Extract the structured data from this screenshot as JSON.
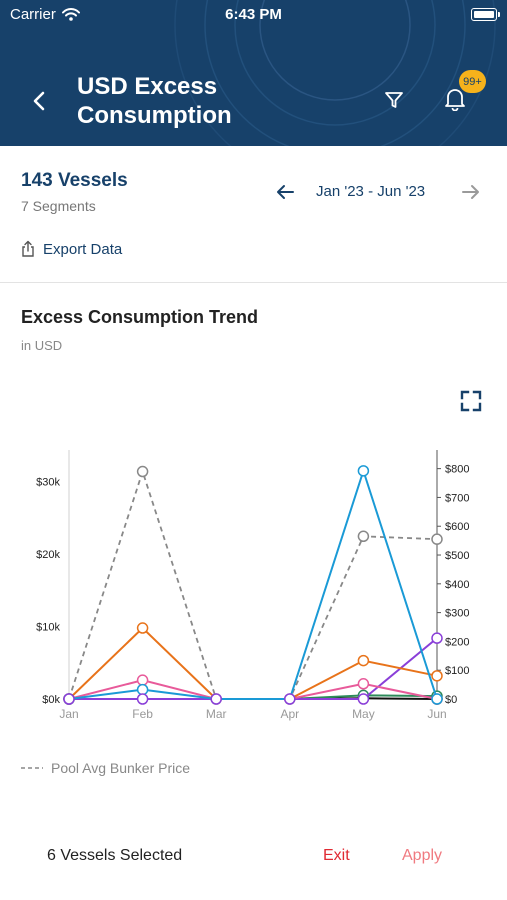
{
  "status_bar": {
    "carrier": "Carrier",
    "time": "6:43 PM"
  },
  "header": {
    "title_line1": "USD Excess",
    "title_line2": "Consumption",
    "notification_badge": "99+",
    "colors": {
      "background": "#17416a",
      "badge": "#f6b21b"
    }
  },
  "summary": {
    "vessel_count": "143 Vessels",
    "segments": "7 Segments",
    "date_range": "Jan '23 - Jun '23",
    "export_label": "Export Data"
  },
  "chart": {
    "title": "Excess Consumption Trend",
    "subtitle": "in USD",
    "legend_label": "Pool Avg Bunker Price"
  },
  "chart_data": {
    "type": "line",
    "categories": [
      "Jan",
      "Feb",
      "Mar",
      "Apr",
      "May",
      "Jun"
    ],
    "y_left": {
      "ticks": [
        0,
        10000,
        20000,
        30000
      ],
      "tick_labels": [
        "$0k",
        "$10k",
        "$20k",
        "$30k"
      ],
      "range": [
        0,
        33000
      ]
    },
    "y_right": {
      "ticks": [
        0,
        100,
        200,
        300,
        400,
        500,
        600,
        700,
        800
      ],
      "tick_labels": [
        "$0",
        "$100",
        "$200",
        "$300",
        "$400",
        "$500",
        "$600",
        "$700",
        "$800"
      ],
      "range": [
        0,
        830
      ]
    },
    "series": [
      {
        "color": "#1a9ad6",
        "axis": "left",
        "values": [
          0,
          1300,
          0,
          0,
          31500,
          0
        ]
      },
      {
        "color": "#e8731a",
        "axis": "left",
        "values": [
          0,
          9800,
          0,
          0,
          5300,
          3200
        ]
      },
      {
        "color": "#e85a9a",
        "axis": "left",
        "values": [
          0,
          2600,
          0,
          0,
          2100,
          0
        ]
      },
      {
        "color": "#8a3fd8",
        "axis": "left",
        "values": [
          0,
          0,
          0,
          0,
          0,
          8400
        ]
      },
      {
        "color": "#2d8a5a",
        "axis": "left",
        "values": [
          0,
          0,
          0,
          0,
          500,
          400
        ]
      },
      {
        "color": "#111111",
        "axis": "left",
        "values": [
          0,
          0,
          0,
          0,
          100,
          0
        ]
      }
    ],
    "reference_series": {
      "name": "Pool Avg Bunker Price",
      "color": "#888888",
      "dashed": true,
      "axis": "right",
      "values": [
        0,
        790,
        0,
        0,
        565,
        555
      ]
    },
    "grid": false,
    "legend_position": "bottom-left"
  },
  "footer": {
    "selected_label": "6 Vessels Selected",
    "exit_label": "Exit",
    "apply_label": "Apply"
  }
}
